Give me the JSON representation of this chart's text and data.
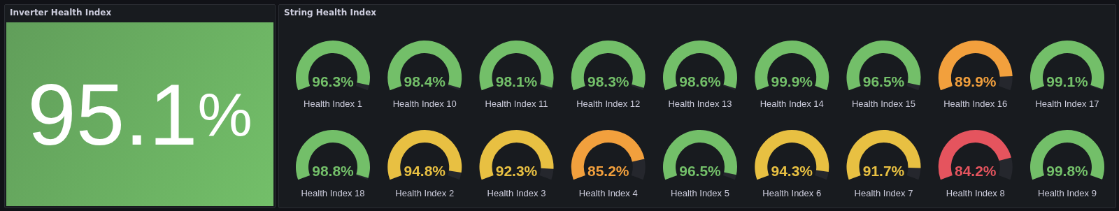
{
  "chart_data": [
    {
      "type": "other",
      "title": "Inverter Health Index",
      "values": [
        95.1
      ],
      "value_labels": [
        "95.1%"
      ],
      "colors": [
        "#73bf69"
      ]
    },
    {
      "type": "other",
      "title": "String Health Index",
      "categories": [
        "Health Index 1",
        "Health Index 10",
        "Health Index 11",
        "Health Index 12",
        "Health Index 13",
        "Health Index 14",
        "Health Index 15",
        "Health Index 16",
        "Health Index 17",
        "Health Index 18",
        "Health Index 2",
        "Health Index 3",
        "Health Index 4",
        "Health Index 5",
        "Health Index 6",
        "Health Index 7",
        "Health Index 8",
        "Health Index 9"
      ],
      "values": [
        96.3,
        98.4,
        98.1,
        98.3,
        98.6,
        99.9,
        96.5,
        89.9,
        99.1,
        98.8,
        94.8,
        92.3,
        85.2,
        96.5,
        94.3,
        91.7,
        84.2,
        99.8
      ],
      "value_labels": [
        "96.3%",
        "98.4%",
        "98.1%",
        "98.3%",
        "98.6%",
        "99.9%",
        "96.5%",
        "89.9%",
        "99.1%",
        "98.8%",
        "94.8%",
        "92.3%",
        "85.2%",
        "96.5%",
        "94.3%",
        "91.7%",
        "84.2%",
        "99.8%"
      ],
      "colors": [
        "#73bf69",
        "#73bf69",
        "#73bf69",
        "#73bf69",
        "#73bf69",
        "#73bf69",
        "#73bf69",
        "#f2a03d",
        "#73bf69",
        "#73bf69",
        "#e8c042",
        "#e8c042",
        "#f2a03d",
        "#73bf69",
        "#e8c042",
        "#e8c042",
        "#e5545e",
        "#73bf69"
      ],
      "data_labels": true
    }
  ]
}
